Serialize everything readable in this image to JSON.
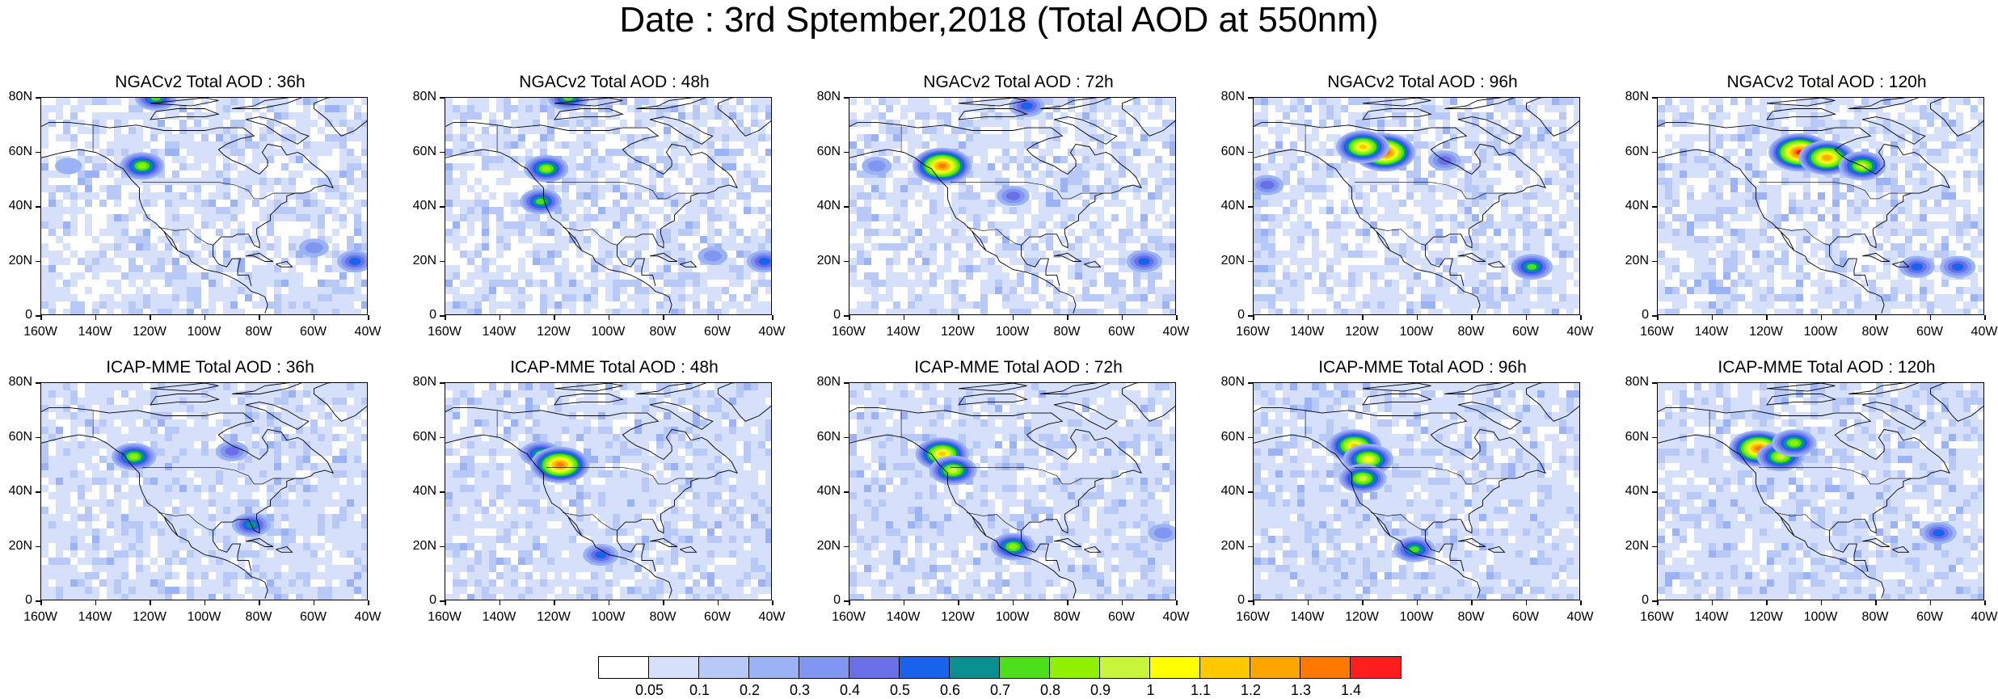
{
  "title": "Date : 3rd Sptember,2018 (Total AOD at 550nm)",
  "panels": [
    {
      "title": "NGACv2 Total AOD : 36h",
      "model": "NGACv2",
      "lead": "36h",
      "features": [
        {
          "lon": -123,
          "lat": 55,
          "v": 0.8
        },
        {
          "lon": -118,
          "lat": 80,
          "v": 0.7
        },
        {
          "lon": -45,
          "lat": 20,
          "v": 0.5
        },
        {
          "lon": -60,
          "lat": 25,
          "v": 0.3
        },
        {
          "lon": -150,
          "lat": 55,
          "v": 0.2
        }
      ]
    },
    {
      "title": "NGACv2 Total AOD : 48h",
      "model": "NGACv2",
      "lead": "48h",
      "features": [
        {
          "lon": -123,
          "lat": 54,
          "v": 0.8
        },
        {
          "lon": -115,
          "lat": 80,
          "v": 0.7
        },
        {
          "lon": -43,
          "lat": 20,
          "v": 0.5
        },
        {
          "lon": -62,
          "lat": 22,
          "v": 0.3
        },
        {
          "lon": -125,
          "lat": 42,
          "v": 0.7
        }
      ]
    },
    {
      "title": "NGACv2 Total AOD : 72h",
      "model": "NGACv2",
      "lead": "72h",
      "features": [
        {
          "lon": -126,
          "lat": 55,
          "v": 1.3
        },
        {
          "lon": -95,
          "lat": 77,
          "v": 0.5
        },
        {
          "lon": -52,
          "lat": 20,
          "v": 0.5
        },
        {
          "lon": -150,
          "lat": 55,
          "v": 0.3
        },
        {
          "lon": -100,
          "lat": 44,
          "v": 0.4
        }
      ]
    },
    {
      "title": "NGACv2 Total AOD : 96h",
      "model": "NGACv2",
      "lead": "96h",
      "features": [
        {
          "lon": -112,
          "lat": 60,
          "v": 1.4
        },
        {
          "lon": -120,
          "lat": 62,
          "v": 1.1
        },
        {
          "lon": -58,
          "lat": 18,
          "v": 0.7
        },
        {
          "lon": -155,
          "lat": 48,
          "v": 0.4
        },
        {
          "lon": -90,
          "lat": 57,
          "v": 0.4
        }
      ]
    },
    {
      "title": "NGACv2 Total AOD : 120h",
      "model": "NGACv2",
      "lead": "120h",
      "features": [
        {
          "lon": -108,
          "lat": 60,
          "v": 1.4
        },
        {
          "lon": -98,
          "lat": 58,
          "v": 1.2
        },
        {
          "lon": -85,
          "lat": 55,
          "v": 0.9
        },
        {
          "lon": -65,
          "lat": 18,
          "v": 0.5
        },
        {
          "lon": -50,
          "lat": 18,
          "v": 0.5
        }
      ]
    },
    {
      "title": "ICAP-MME Total AOD : 36h",
      "model": "ICAP-MME",
      "lead": "36h",
      "features": [
        {
          "lon": -126,
          "lat": 53,
          "v": 0.8
        },
        {
          "lon": -90,
          "lat": 55,
          "v": 0.4
        },
        {
          "lon": -83,
          "lat": 28,
          "v": 0.6
        }
      ]
    },
    {
      "title": "ICAP-MME Total AOD : 48h",
      "model": "ICAP-MME",
      "lead": "48h",
      "features": [
        {
          "lon": -125,
          "lat": 54,
          "v": 0.7
        },
        {
          "lon": -118,
          "lat": 50,
          "v": 1.3
        },
        {
          "lon": -103,
          "lat": 17,
          "v": 0.5
        }
      ]
    },
    {
      "title": "ICAP-MME Total AOD : 72h",
      "model": "ICAP-MME",
      "lead": "72h",
      "features": [
        {
          "lon": -126,
          "lat": 54,
          "v": 1.1
        },
        {
          "lon": -122,
          "lat": 48,
          "v": 0.9
        },
        {
          "lon": -100,
          "lat": 20,
          "v": 0.8
        },
        {
          "lon": -45,
          "lat": 25,
          "v": 0.3
        }
      ]
    },
    {
      "title": "ICAP-MME Total AOD : 96h",
      "model": "ICAP-MME",
      "lead": "96h",
      "features": [
        {
          "lon": -123,
          "lat": 57,
          "v": 1.1
        },
        {
          "lon": -118,
          "lat": 52,
          "v": 1.0
        },
        {
          "lon": -120,
          "lat": 45,
          "v": 0.9
        },
        {
          "lon": -101,
          "lat": 19,
          "v": 0.7
        }
      ]
    },
    {
      "title": "ICAP-MME Total AOD : 120h",
      "model": "ICAP-MME",
      "lead": "120h",
      "features": [
        {
          "lon": -123,
          "lat": 56,
          "v": 1.3
        },
        {
          "lon": -115,
          "lat": 53,
          "v": 0.9
        },
        {
          "lon": -110,
          "lat": 58,
          "v": 0.8
        },
        {
          "lon": -57,
          "lat": 25,
          "v": 0.5
        }
      ]
    }
  ],
  "map_axes": {
    "lat_labels": [
      "80N",
      "60N",
      "40N",
      "20N",
      "0"
    ],
    "lat_values": [
      80,
      60,
      40,
      20,
      0
    ],
    "lon_labels": [
      "160W",
      "140W",
      "120W",
      "100W",
      "80W",
      "60W",
      "40W"
    ],
    "lon_values": [
      -160,
      -140,
      -120,
      -100,
      -80,
      -60,
      -40
    ],
    "lon_range": [
      -160,
      -40
    ],
    "lat_range": [
      0,
      80
    ]
  },
  "colorbar": {
    "labels": [
      "0.05",
      "0.1",
      "0.2",
      "0.3",
      "0.4",
      "0.5",
      "0.6",
      "0.7",
      "0.8",
      "0.9",
      "1",
      "1.1",
      "1.2",
      "1.3",
      "1.4"
    ],
    "thresholds": [
      0,
      0.05,
      0.1,
      0.2,
      0.3,
      0.4,
      0.5,
      0.6,
      0.7,
      0.8,
      0.9,
      1,
      1.1,
      1.2,
      1.3,
      1.4
    ],
    "colors": [
      "#ffffff",
      "#d6e0fb",
      "#b9c9f7",
      "#9bb3f4",
      "#8096f0",
      "#6a6ee8",
      "#1763ec",
      "#0a9090",
      "#4be01a",
      "#8ff000",
      "#c7f53a",
      "#ffff00",
      "#ffc800",
      "#ffa500",
      "#ff7800",
      "#ff1e1e"
    ]
  }
}
